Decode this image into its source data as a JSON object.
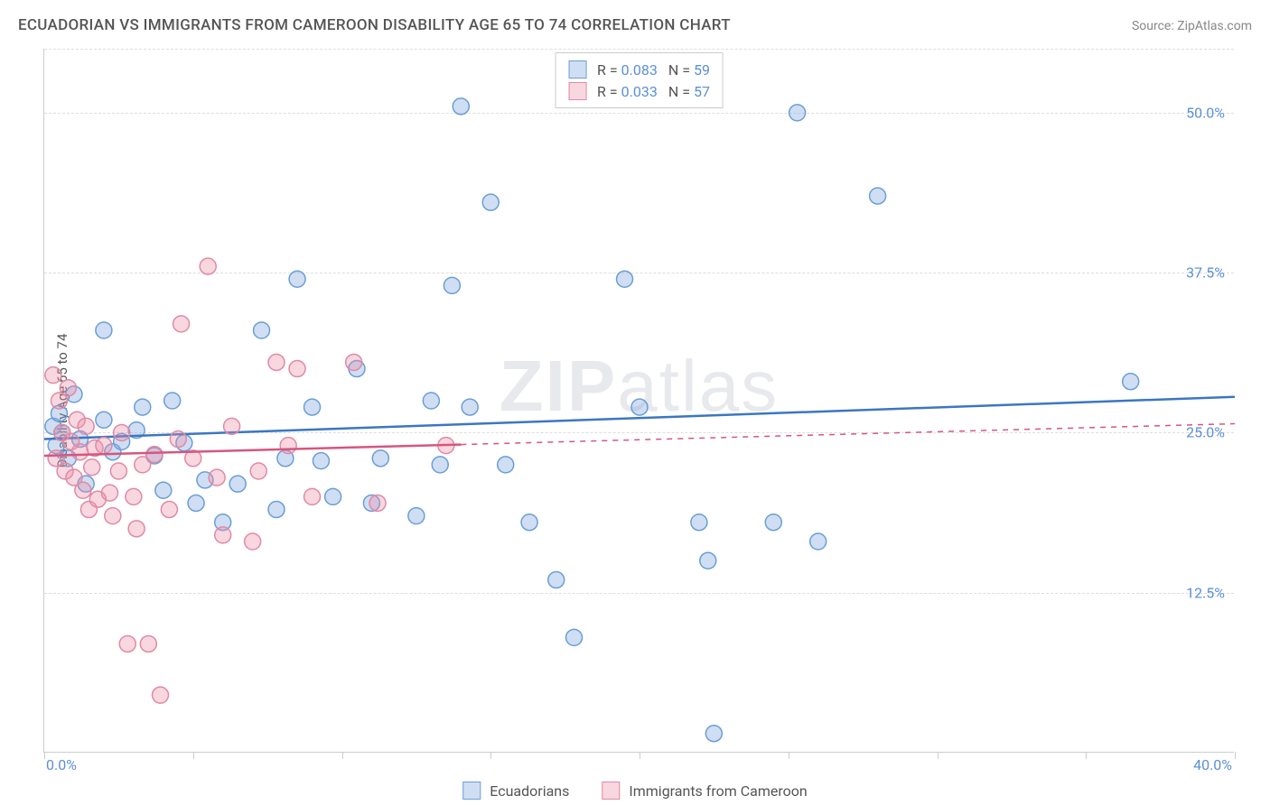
{
  "title": "ECUADORIAN VS IMMIGRANTS FROM CAMEROON DISABILITY AGE 65 TO 74 CORRELATION CHART",
  "source_label": "Source: ",
  "source_name": "ZipAtlas.com",
  "watermark_zip": "ZIP",
  "watermark_atlas": "atlas",
  "y_axis_label": "Disability Age 65 to 74",
  "chart": {
    "type": "scatter",
    "xlim": [
      0,
      40
    ],
    "ylim": [
      0,
      55
    ],
    "x_tick_marks": [
      0,
      5,
      10,
      15,
      20,
      25,
      30,
      35,
      40
    ],
    "x_tick_labels": {
      "min": "0.0%",
      "max": "40.0%"
    },
    "y_gridlines": [
      12.5,
      25.0,
      37.5,
      50.0,
      55.0
    ],
    "y_tick_labels": [
      "12.5%",
      "25.0%",
      "37.5%",
      "50.0%"
    ],
    "background_color": "#ffffff",
    "grid_color": "#dddddd",
    "axis_color": "#cccccc",
    "tick_label_color": "#5b8fd6",
    "series": [
      {
        "name": "Ecuadorians",
        "marker_fill": "rgba(120,160,220,0.35)",
        "marker_stroke": "#6a9ed8",
        "marker_radius": 9,
        "trend_color": "#3b76c4",
        "trend_width": 2.5,
        "trend_dash_after_x": 40,
        "R": "0.083",
        "N": "59",
        "trend": {
          "x1": 0,
          "y1": 24.5,
          "x2": 40,
          "y2": 27.8
        },
        "points": [
          [
            0.3,
            25.5
          ],
          [
            0.4,
            24.0
          ],
          [
            0.5,
            26.5
          ],
          [
            0.6,
            25.0
          ],
          [
            0.8,
            23.0
          ],
          [
            1.0,
            28.0
          ],
          [
            1.2,
            24.5
          ],
          [
            1.4,
            21.0
          ],
          [
            2.0,
            33.0
          ],
          [
            2.0,
            26.0
          ],
          [
            2.3,
            23.5
          ],
          [
            2.6,
            24.3
          ],
          [
            3.1,
            25.2
          ],
          [
            3.3,
            27.0
          ],
          [
            3.7,
            23.2
          ],
          [
            4.0,
            20.5
          ],
          [
            4.3,
            27.5
          ],
          [
            4.7,
            24.2
          ],
          [
            5.1,
            19.5
          ],
          [
            5.4,
            21.3
          ],
          [
            6.0,
            18.0
          ],
          [
            6.5,
            21.0
          ],
          [
            7.3,
            33.0
          ],
          [
            7.8,
            19.0
          ],
          [
            8.1,
            23.0
          ],
          [
            8.5,
            37.0
          ],
          [
            9.0,
            27.0
          ],
          [
            9.3,
            22.8
          ],
          [
            9.7,
            20.0
          ],
          [
            10.5,
            30.0
          ],
          [
            11.0,
            19.5
          ],
          [
            11.3,
            23.0
          ],
          [
            12.5,
            18.5
          ],
          [
            13.0,
            27.5
          ],
          [
            13.3,
            22.5
          ],
          [
            13.7,
            36.5
          ],
          [
            14.0,
            50.5
          ],
          [
            14.3,
            27.0
          ],
          [
            15.0,
            43.0
          ],
          [
            15.5,
            22.5
          ],
          [
            16.3,
            18.0
          ],
          [
            17.2,
            13.5
          ],
          [
            17.8,
            9.0
          ],
          [
            19.5,
            37.0
          ],
          [
            20.0,
            27.0
          ],
          [
            22.0,
            18.0
          ],
          [
            22.3,
            15.0
          ],
          [
            22.5,
            1.5
          ],
          [
            24.5,
            18.0
          ],
          [
            25.3,
            50.0
          ],
          [
            26.0,
            16.5
          ],
          [
            28.0,
            43.5
          ],
          [
            36.5,
            29.0
          ]
        ]
      },
      {
        "name": "Immigrants from Cameroon",
        "marker_fill": "rgba(235,140,165,0.35)",
        "marker_stroke": "#e08aa5",
        "marker_radius": 9,
        "trend_color": "#d6567e",
        "trend_width": 2.5,
        "trend_dash_after_x": 14,
        "R": "0.033",
        "N": "57",
        "trend": {
          "x1": 0,
          "y1": 23.2,
          "x2": 40,
          "y2": 25.7
        },
        "points": [
          [
            0.3,
            29.5
          ],
          [
            0.4,
            23.0
          ],
          [
            0.5,
            27.5
          ],
          [
            0.6,
            25.0
          ],
          [
            0.7,
            22.0
          ],
          [
            0.8,
            28.5
          ],
          [
            0.9,
            24.3
          ],
          [
            1.0,
            21.5
          ],
          [
            1.1,
            26.0
          ],
          [
            1.2,
            23.5
          ],
          [
            1.3,
            20.5
          ],
          [
            1.4,
            25.5
          ],
          [
            1.5,
            19.0
          ],
          [
            1.6,
            22.3
          ],
          [
            1.7,
            23.8
          ],
          [
            1.8,
            19.8
          ],
          [
            2.0,
            24.0
          ],
          [
            2.2,
            20.3
          ],
          [
            2.3,
            18.5
          ],
          [
            2.5,
            22.0
          ],
          [
            2.6,
            25.0
          ],
          [
            2.8,
            8.5
          ],
          [
            3.0,
            20.0
          ],
          [
            3.1,
            17.5
          ],
          [
            3.3,
            22.5
          ],
          [
            3.5,
            8.5
          ],
          [
            3.7,
            23.3
          ],
          [
            3.9,
            4.5
          ],
          [
            4.2,
            19.0
          ],
          [
            4.5,
            24.5
          ],
          [
            4.6,
            33.5
          ],
          [
            5.0,
            23.0
          ],
          [
            5.5,
            38.0
          ],
          [
            5.8,
            21.5
          ],
          [
            6.0,
            17.0
          ],
          [
            6.3,
            25.5
          ],
          [
            7.0,
            16.5
          ],
          [
            7.2,
            22.0
          ],
          [
            7.8,
            30.5
          ],
          [
            8.2,
            24.0
          ],
          [
            8.5,
            30.0
          ],
          [
            9.0,
            20.0
          ],
          [
            10.4,
            30.5
          ],
          [
            11.2,
            19.5
          ],
          [
            13.5,
            24.0
          ]
        ]
      }
    ]
  },
  "legend_top": [
    {
      "swatch_fill": "rgba(120,160,220,0.35)",
      "swatch_stroke": "#6a9ed8",
      "r_label": "R = ",
      "r_val": "0.083",
      "n_label": "N = ",
      "n_val": "59"
    },
    {
      "swatch_fill": "rgba(235,140,165,0.35)",
      "swatch_stroke": "#e08aa5",
      "r_label": "R = ",
      "r_val": "0.033",
      "n_label": "N = ",
      "n_val": "57"
    }
  ],
  "legend_bottom": [
    {
      "swatch_fill": "rgba(120,160,220,0.35)",
      "swatch_stroke": "#6a9ed8",
      "label": "Ecuadorians"
    },
    {
      "swatch_fill": "rgba(235,140,165,0.35)",
      "swatch_stroke": "#e08aa5",
      "label": "Immigrants from Cameroon"
    }
  ]
}
